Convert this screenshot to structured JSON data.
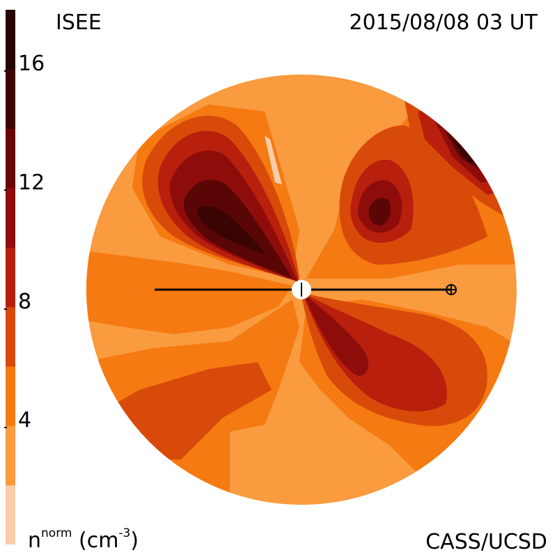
{
  "header": {
    "observatory": "ISEE",
    "timestamp": "2015/08/08 03 UT"
  },
  "footer": {
    "credit": "CASS/UCSD",
    "quantity": "n",
    "quantity_sup": "norm",
    "unit_prefix": "(cm",
    "unit_sup": "-3",
    "unit_suffix": ")"
  },
  "colorbar": {
    "tick_labels": [
      "16",
      "12",
      "8",
      "4"
    ],
    "tick_values": [
      16,
      12,
      8,
      4
    ],
    "range": [
      0,
      18
    ],
    "levels": [
      {
        "min": 0,
        "max": 2,
        "color": "#f9ccaa"
      },
      {
        "min": 2,
        "max": 4,
        "color": "#f99b3e"
      },
      {
        "min": 4,
        "max": 6,
        "color": "#f57a12"
      },
      {
        "min": 6,
        "max": 8,
        "color": "#d84a0a"
      },
      {
        "min": 8,
        "max": 10,
        "color": "#b81f0c"
      },
      {
        "min": 10,
        "max": 12,
        "color": "#8e0d0a"
      },
      {
        "min": 12,
        "max": 14,
        "color": "#6a0706"
      },
      {
        "min": 14,
        "max": 16,
        "color": "#3f0504"
      },
      {
        "min": 16,
        "max": 18,
        "color": "#280303"
      }
    ]
  },
  "colors": {
    "background_disc": "#f99b3e",
    "level_1": "#f57a12",
    "level_2": "#d84a0a",
    "level_3": "#b81f0c",
    "level_4": "#8e0d0a",
    "level_5": "#5a0606",
    "level_6": "#3a0403",
    "light": "#f9ccaa"
  }
}
